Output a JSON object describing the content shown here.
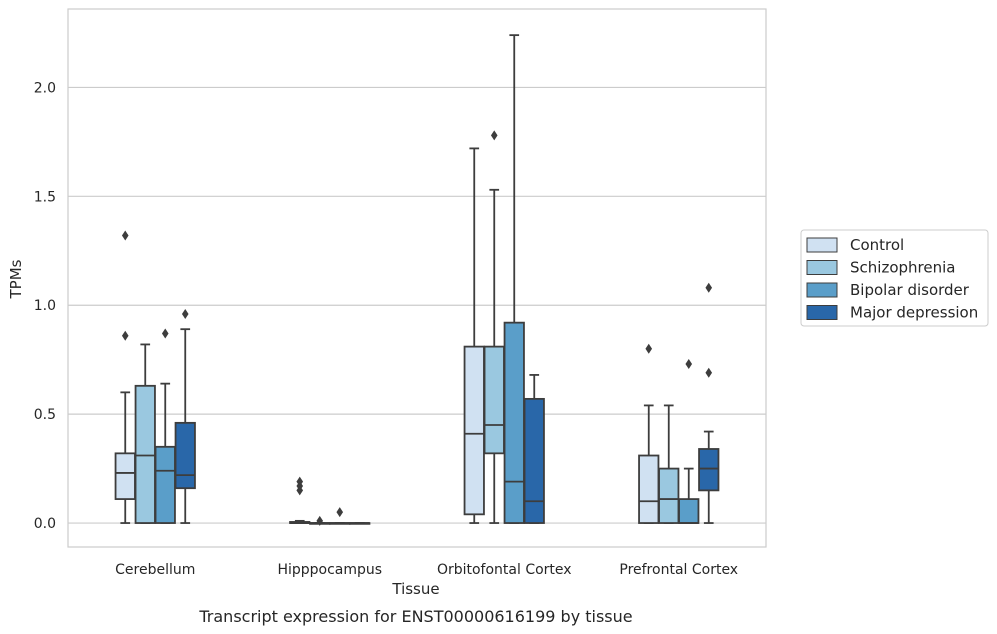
{
  "chart_data": {
    "type": "boxplot",
    "xlabel": "Tissue",
    "ylabel": "TPMs",
    "caption": "Transcript expression for ENST00000616199 by tissue",
    "ylim": [
      -0.11,
      2.36
    ],
    "yticks": [
      0.0,
      0.5,
      1.0,
      1.5,
      2.0
    ],
    "ytick_labels": [
      "0.0",
      "0.5",
      "1.0",
      "1.5",
      "2.0"
    ],
    "grid": "horizontal",
    "legend_position": "right",
    "categories": [
      "Cerebellum",
      "Hipppocampus",
      "Orbitofontal Cortex",
      "Prefrontal Cortex"
    ],
    "series": [
      {
        "name": "Control",
        "color": "#d0e1f2",
        "boxes": [
          {
            "whislo": 0.0,
            "q1": 0.11,
            "med": 0.23,
            "q3": 0.32,
            "whishi": 0.6,
            "fliers": [
              0.86,
              1.32
            ]
          },
          {
            "whislo": 0.0,
            "q1": 0.0,
            "med": 0.0,
            "q3": 0.005,
            "whishi": 0.01,
            "fliers": [
              0.15,
              0.17,
              0.19
            ]
          },
          {
            "whislo": 0.0,
            "q1": 0.04,
            "med": 0.41,
            "q3": 0.81,
            "whishi": 1.72,
            "fliers": []
          },
          {
            "whislo": 0.0,
            "q1": 0.0,
            "med": 0.1,
            "q3": 0.31,
            "whishi": 0.54,
            "fliers": [
              0.8
            ]
          }
        ]
      },
      {
        "name": "Schizophrenia",
        "color": "#9ac8e0",
        "boxes": [
          {
            "whislo": 0.0,
            "q1": 0.0,
            "med": 0.31,
            "q3": 0.63,
            "whishi": 0.82,
            "fliers": []
          },
          {
            "whislo": 0.0,
            "q1": 0.0,
            "med": 0.0,
            "q3": 0.0,
            "whishi": 0.0,
            "fliers": [
              0.01
            ]
          },
          {
            "whislo": 0.0,
            "q1": 0.32,
            "med": 0.45,
            "q3": 0.81,
            "whishi": 1.53,
            "fliers": [
              1.78
            ]
          },
          {
            "whislo": 0.0,
            "q1": 0.0,
            "med": 0.11,
            "q3": 0.25,
            "whishi": 0.54,
            "fliers": []
          }
        ]
      },
      {
        "name": "Bipolar disorder",
        "color": "#5a9ec9",
        "boxes": [
          {
            "whislo": 0.0,
            "q1": 0.0,
            "med": 0.24,
            "q3": 0.35,
            "whishi": 0.64,
            "fliers": [
              0.87
            ]
          },
          {
            "whislo": 0.0,
            "q1": 0.0,
            "med": 0.0,
            "q3": 0.0,
            "whishi": 0.0,
            "fliers": [
              0.05
            ]
          },
          {
            "whislo": 0.0,
            "q1": 0.0,
            "med": 0.19,
            "q3": 0.92,
            "whishi": 2.24,
            "fliers": []
          },
          {
            "whislo": 0.0,
            "q1": 0.0,
            "med": 0.0,
            "q3": 0.11,
            "whishi": 0.25,
            "fliers": [
              0.73
            ]
          }
        ]
      },
      {
        "name": "Major depression",
        "color": "#2967a9",
        "boxes": [
          {
            "whislo": 0.0,
            "q1": 0.16,
            "med": 0.22,
            "q3": 0.46,
            "whishi": 0.89,
            "fliers": [
              0.96
            ]
          },
          {
            "whislo": 0.0,
            "q1": 0.0,
            "med": 0.0,
            "q3": 0.0,
            "whishi": 0.0,
            "fliers": []
          },
          {
            "whislo": 0.0,
            "q1": 0.0,
            "med": 0.1,
            "q3": 0.57,
            "whishi": 0.68,
            "fliers": []
          },
          {
            "whislo": 0.0,
            "q1": 0.15,
            "med": 0.25,
            "q3": 0.34,
            "whishi": 0.42,
            "fliers": [
              0.69,
              1.08
            ]
          }
        ]
      }
    ]
  }
}
